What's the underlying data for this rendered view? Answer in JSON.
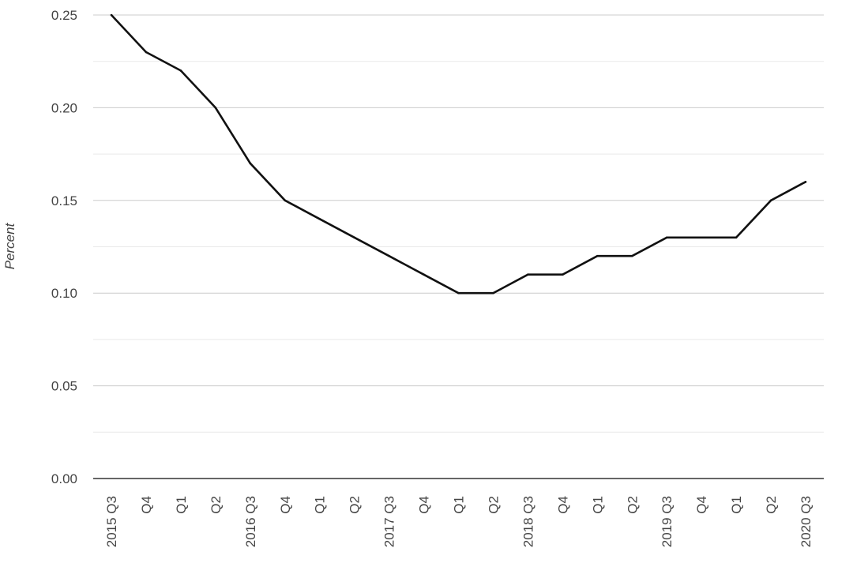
{
  "chart_data": {
    "type": "line",
    "title": "",
    "xlabel": "",
    "ylabel": "Percent",
    "ylim": [
      0,
      0.25
    ],
    "y_ticks": [
      "0.00",
      "0.05",
      "0.10",
      "0.15",
      "0.20",
      "0.25"
    ],
    "grid": true,
    "legend": "none",
    "categories": [
      "2015 Q3",
      "Q4",
      "Q1",
      "Q2",
      "2016 Q3",
      "Q4",
      "Q1",
      "Q2",
      "2017 Q3",
      "Q4",
      "Q1",
      "Q2",
      "2018 Q3",
      "Q4",
      "Q1",
      "Q2",
      "2019 Q3",
      "Q4",
      "Q1",
      "Q2",
      "2020 Q3"
    ],
    "series": [
      {
        "values": [
          0.25,
          0.23,
          0.22,
          0.2,
          0.17,
          0.15,
          0.14,
          0.13,
          0.12,
          0.11,
          0.1,
          0.1,
          0.11,
          0.11,
          0.12,
          0.12,
          0.13,
          0.13,
          0.13,
          0.15,
          0.16
        ],
        "color": "#111111"
      }
    ]
  }
}
